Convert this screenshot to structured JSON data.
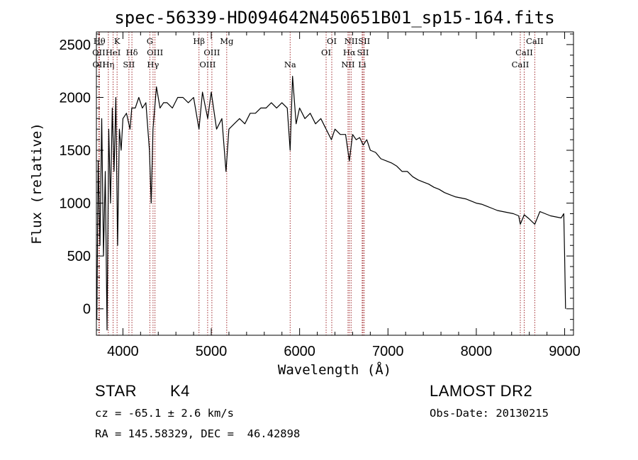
{
  "chart_data": {
    "type": "line",
    "title": "spec-56339-HD094642N450651B01_sp15-164.fits",
    "xlabel": "Wavelength (Å)",
    "ylabel": "Flux (relative)",
    "xlim": [
      3700,
      9100
    ],
    "ylim": [
      -250,
      2620
    ],
    "xticks": [
      4000,
      5000,
      6000,
      7000,
      8000,
      9000
    ],
    "yticks": [
      0,
      500,
      1000,
      1500,
      2000,
      2500
    ],
    "grid": false,
    "line_color": "#000000",
    "marker_color": "#a0282b",
    "series": [
      {
        "x": [
          3705,
          3720,
          3740,
          3760,
          3780,
          3800,
          3820,
          3840,
          3860,
          3880,
          3900,
          3920,
          3940,
          3960,
          3980,
          4000,
          4040,
          4080,
          4100,
          4140,
          4180,
          4220,
          4260,
          4300,
          4320,
          4340,
          4380,
          4420,
          4460,
          4500,
          4560,
          4620,
          4680,
          4740,
          4800,
          4861,
          4900,
          4960,
          5000,
          5060,
          5120,
          5167,
          5200,
          5260,
          5320,
          5380,
          5440,
          5500,
          5560,
          5620,
          5680,
          5740,
          5800,
          5860,
          5893,
          5920,
          5960,
          6000,
          6060,
          6120,
          6180,
          6240,
          6300,
          6360,
          6400,
          6460,
          6520,
          6563,
          6600,
          6640,
          6680,
          6720,
          6760,
          6800,
          6860,
          6920,
          6980,
          7040,
          7100,
          7160,
          7220,
          7280,
          7340,
          7400,
          7460,
          7520,
          7580,
          7640,
          7700,
          7760,
          7820,
          7880,
          7940,
          8000,
          8060,
          8120,
          8180,
          8240,
          8300,
          8360,
          8420,
          8480,
          8498,
          8542,
          8600,
          8662,
          8720,
          8780,
          8840,
          8900,
          8960,
          8990,
          9000,
          9010
        ],
        "y": [
          -100,
          1400,
          600,
          1800,
          500,
          1300,
          -200,
          1700,
          1000,
          1900,
          1300,
          2000,
          600,
          1700,
          1500,
          1800,
          1850,
          1700,
          1900,
          1900,
          2000,
          1900,
          1950,
          1500,
          1000,
          1700,
          2100,
          1900,
          1950,
          1950,
          1900,
          2000,
          2000,
          1950,
          2000,
          1700,
          2050,
          1800,
          2050,
          1700,
          1800,
          1300,
          1700,
          1750,
          1800,
          1750,
          1850,
          1850,
          1900,
          1900,
          1950,
          1900,
          1950,
          1900,
          1500,
          2200,
          1750,
          1900,
          1800,
          1850,
          1750,
          1800,
          1700,
          1600,
          1700,
          1650,
          1650,
          1400,
          1650,
          1600,
          1620,
          1550,
          1600,
          1500,
          1480,
          1420,
          1400,
          1380,
          1350,
          1300,
          1300,
          1250,
          1220,
          1200,
          1180,
          1150,
          1130,
          1100,
          1080,
          1060,
          1050,
          1040,
          1020,
          1000,
          990,
          970,
          950,
          930,
          920,
          910,
          900,
          880,
          800,
          890,
          850,
          800,
          920,
          900,
          880,
          870,
          860,
          900,
          500,
          0
        ]
      }
    ],
    "line_markers": [
      {
        "label": "OII",
        "x": 3727,
        "row": 1
      },
      {
        "label": "OII",
        "x": 3729,
        "row": 2
      },
      {
        "label": "Hθ",
        "x": 3734,
        "row": 0
      },
      {
        "label": "Hη",
        "x": 3835,
        "row": 2
      },
      {
        "label": "HeI",
        "x": 3889,
        "row": 1
      },
      {
        "label": "K",
        "x": 3934,
        "row": 0
      },
      {
        "label": "Hδ",
        "x": 4102,
        "row": 1
      },
      {
        "label": "SII",
        "x": 4068,
        "row": 2
      },
      {
        "label": "G",
        "x": 4305,
        "row": 0
      },
      {
        "label": "OIII",
        "x": 4363,
        "row": 1
      },
      {
        "label": "Hγ",
        "x": 4341,
        "row": 2
      },
      {
        "label": "Hβ",
        "x": 4861,
        "row": 0
      },
      {
        "label": "OIII",
        "x": 5007,
        "row": 1
      },
      {
        "label": "OIII",
        "x": 4959,
        "row": 2
      },
      {
        "label": "Mg",
        "x": 5175,
        "row": 0
      },
      {
        "label": "Na",
        "x": 5893,
        "row": 2
      },
      {
        "label": "OI",
        "x": 6364,
        "row": 0
      },
      {
        "label": "OI",
        "x": 6300,
        "row": 1
      },
      {
        "label": "NII",
        "x": 6583,
        "row": 0
      },
      {
        "label": "Hα",
        "x": 6563,
        "row": 1
      },
      {
        "label": "NII",
        "x": 6548,
        "row": 2
      },
      {
        "label": "SII",
        "x": 6731,
        "row": 0
      },
      {
        "label": "SII",
        "x": 6717,
        "row": 1
      },
      {
        "label": "Li",
        "x": 6708,
        "row": 2
      },
      {
        "label": "CaII",
        "x": 8662,
        "row": 0
      },
      {
        "label": "CaII",
        "x": 8542,
        "row": 1
      },
      {
        "label": "CaII",
        "x": 8498,
        "row": 2
      }
    ]
  },
  "info": {
    "object_class": "STAR",
    "subclass": "K4",
    "survey": "LAMOST DR2",
    "redshift": "cz = -65.1 ± 2.6 km/s",
    "obs_date": "Obs-Date: 20130215",
    "coords": "RA = 145.58329, DEC =  46.42898"
  }
}
